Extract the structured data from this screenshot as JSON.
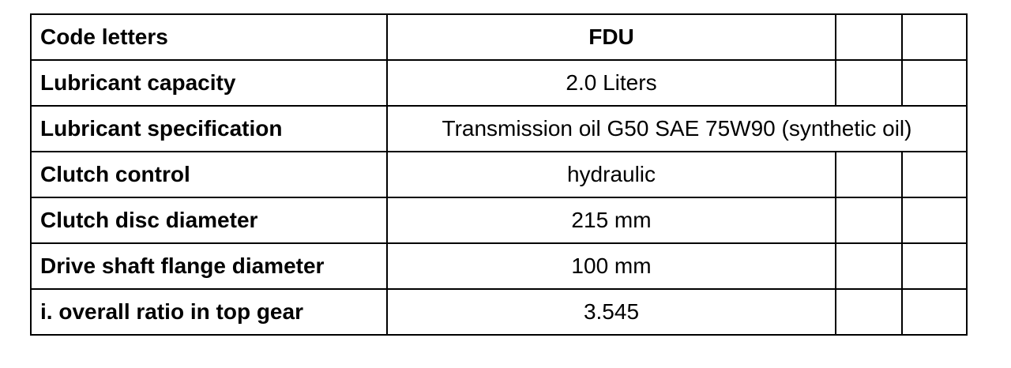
{
  "rows": [
    {
      "label": "Code letters",
      "value": "FDU"
    },
    {
      "label": "Lubricant capacity",
      "value": "2.0 Liters"
    },
    {
      "label": "Lubricant specification",
      "value": "Transmission oil G50 SAE 75W90 (synthetic oil)"
    },
    {
      "label": "Clutch control",
      "value": "hydraulic"
    },
    {
      "label": "Clutch disc diameter",
      "value": "215 mm"
    },
    {
      "label": "Drive shaft flange diameter",
      "value": "100 mm"
    },
    {
      "label": "i. overall ratio in top gear",
      "value": "3.545"
    }
  ]
}
